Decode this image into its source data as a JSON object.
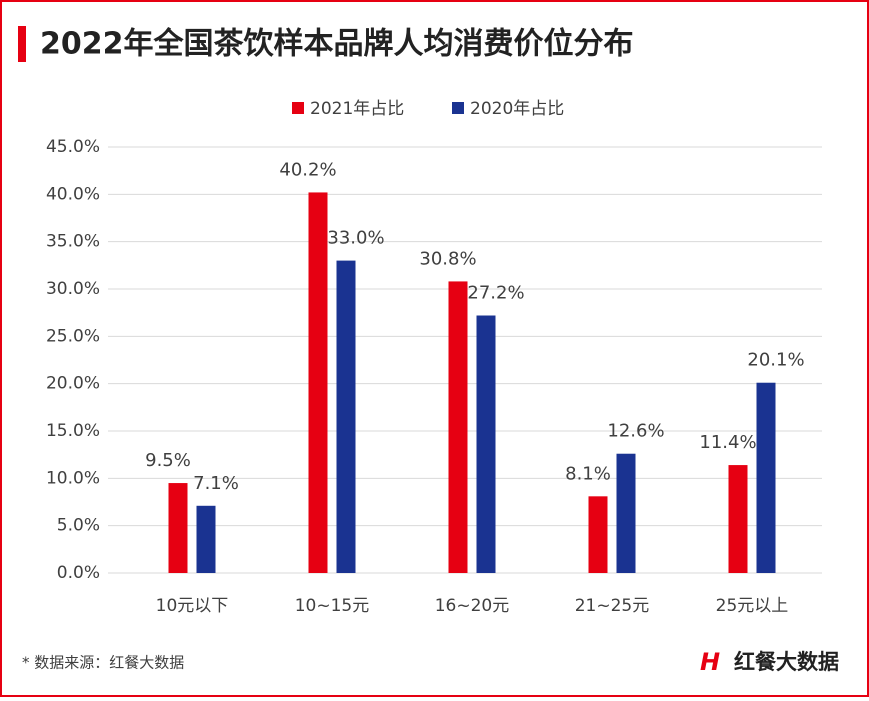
{
  "chart_data": {
    "type": "bar",
    "title": "2022年全国茶饮样本品牌人均消费价位分布",
    "categories": [
      "10元以下",
      "10~15元",
      "16~20元",
      "21~25元",
      "25元以上"
    ],
    "series": [
      {
        "name": "2021年占比",
        "color": "#e60012",
        "values": [
          9.5,
          40.2,
          30.8,
          8.1,
          11.4
        ],
        "value_labels": [
          "9.5%",
          "40.2%",
          "30.8%",
          "8.1%",
          "11.4%"
        ]
      },
      {
        "name": "2020年占比",
        "color": "#1a3391",
        "values": [
          7.1,
          33.0,
          27.2,
          12.6,
          20.1
        ],
        "value_labels": [
          "7.1%",
          "33.0%",
          "27.2%",
          "12.6%",
          "20.1%"
        ]
      }
    ],
    "ylim": [
      0,
      45
    ],
    "yticks": [
      {
        "value": 0,
        "label": "0.0%"
      },
      {
        "value": 5,
        "label": "5.0%"
      },
      {
        "value": 10,
        "label": "10.0%"
      },
      {
        "value": 15,
        "label": "15.0%"
      },
      {
        "value": 20,
        "label": "20.0%"
      },
      {
        "value": 25,
        "label": "25.0%"
      },
      {
        "value": 30,
        "label": "30.0%"
      },
      {
        "value": 35,
        "label": "35.0%"
      },
      {
        "value": 40,
        "label": "40.0%"
      },
      {
        "value": 45,
        "label": "45.0%"
      }
    ],
    "grid": true,
    "legend": "top",
    "source": "* 数据来源：红餐大数据",
    "logo_text": "红餐大数据"
  }
}
